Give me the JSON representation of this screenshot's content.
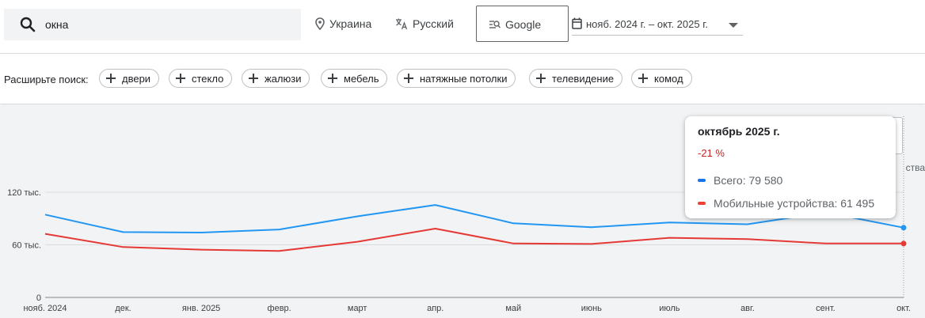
{
  "search": {
    "value": "окна"
  },
  "filters": {
    "region": "Украина",
    "language": "Русский",
    "engine": "Google",
    "date_range": "нояб. 2024 г. – окт. 2025 г."
  },
  "expand": {
    "label": "Расширьте поиск:",
    "chips": [
      "двери",
      "стекло",
      "жалюзи",
      "мебель",
      "натяжные потолки",
      "телевидение",
      "комод"
    ]
  },
  "legend_cut": "ства",
  "tooltip": {
    "title": "октябрь 2025 г.",
    "change": "-21 %",
    "rows": [
      {
        "label": "Всего: 79 580",
        "color": "#1a73e8"
      },
      {
        "label": "Мобильные устройства: 61 495",
        "color": "#ea4335"
      }
    ]
  },
  "colors": {
    "total": "#2196f3",
    "mobile": "#e53935"
  },
  "chart_data": {
    "type": "line",
    "categories": [
      "нояб. 2024",
      "дек.",
      "янв. 2025",
      "февр.",
      "март",
      "апр.",
      "май",
      "июнь",
      "июль",
      "авг.",
      "сент.",
      "окт."
    ],
    "y_ticks": [
      "0",
      "60 тыс.",
      "120 тыс."
    ],
    "ylim": [
      0,
      120000
    ],
    "series": [
      {
        "name": "Всего",
        "values": [
          94500,
          74500,
          74000,
          77500,
          92500,
          105500,
          84500,
          80000,
          85500,
          83500,
          97000,
          79580
        ]
      },
      {
        "name": "Мобильные устройства",
        "values": [
          72500,
          57500,
          54500,
          53000,
          63500,
          78500,
          61500,
          61000,
          68000,
          66500,
          61500,
          61495
        ]
      }
    ]
  }
}
